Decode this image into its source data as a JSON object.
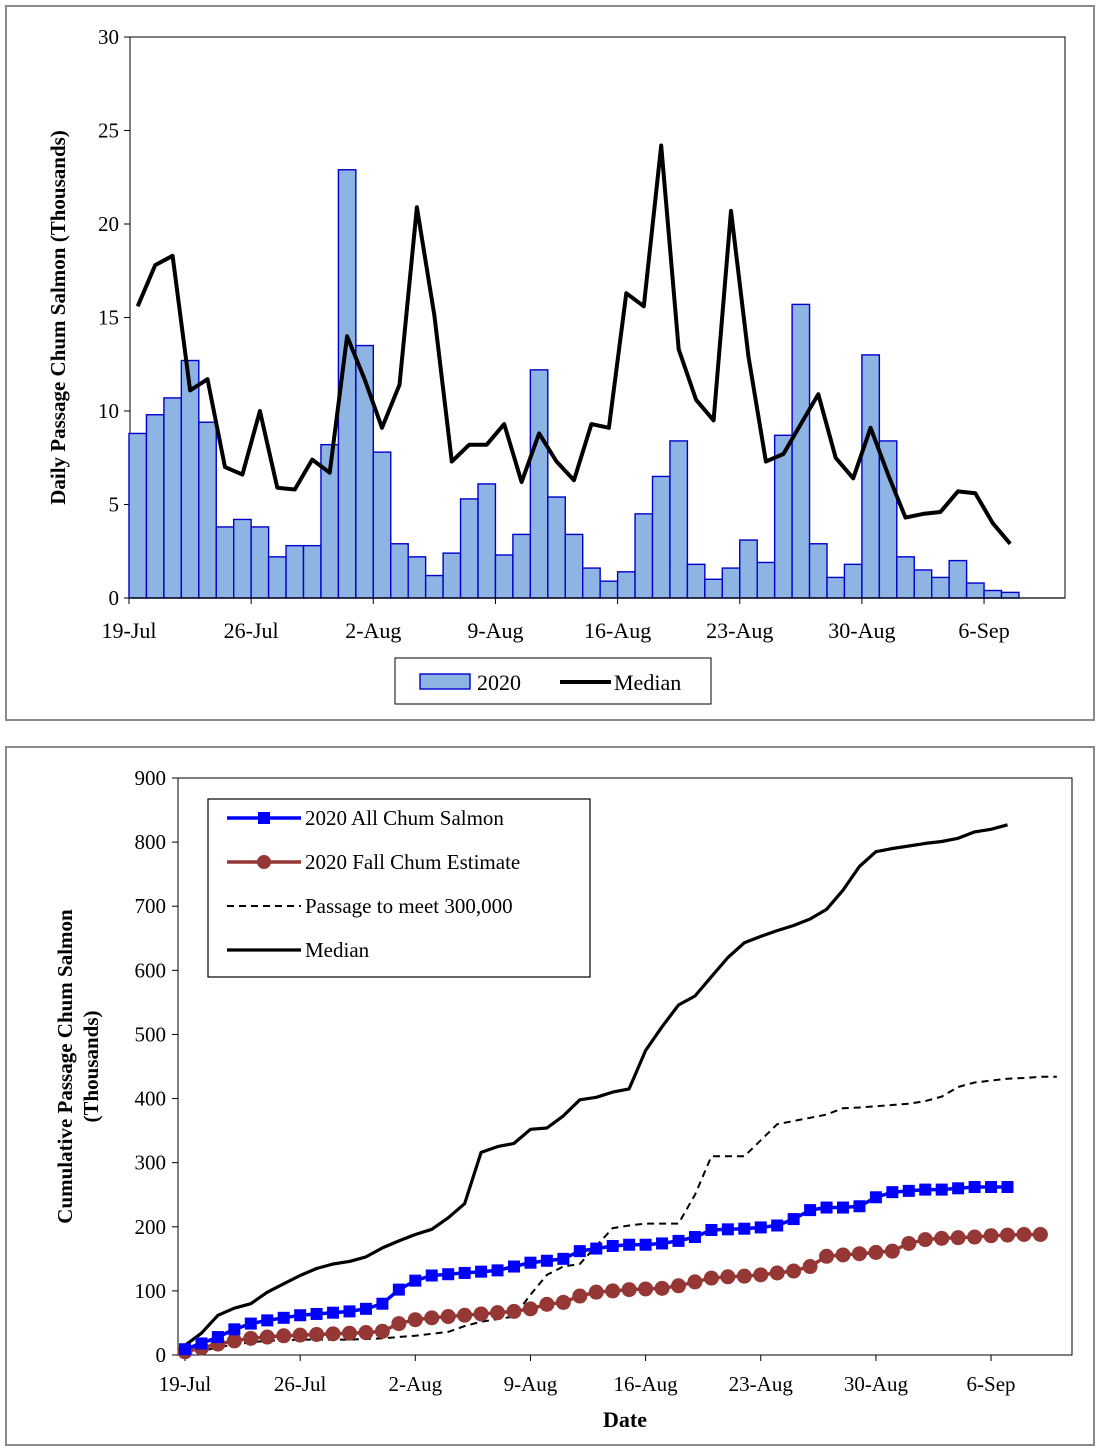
{
  "chart_data": [
    {
      "type": "bar",
      "ylabel": "Daily Passage Chum Salmon (Thousands)",
      "xlabel": "",
      "ylim": [
        0,
        30
      ],
      "yticks": [
        "0",
        "5",
        "10",
        "15",
        "20",
        "25",
        "30"
      ],
      "x_tick_labels": [
        "19-Jul",
        "26-Jul",
        "2-Aug",
        "9-Aug",
        "16-Aug",
        "23-Aug",
        "30-Aug",
        "6-Sep"
      ],
      "x_tick_days": [
        0,
        7,
        14,
        21,
        28,
        35,
        42,
        49
      ],
      "legend_placement": "bottom",
      "series": [
        {
          "name": "2020",
          "kind": "bar",
          "color": "#8EB4E3",
          "edge": "#0000CC",
          "start_date": "19-Jul",
          "values": [
            8.8,
            9.8,
            10.7,
            12.7,
            9.4,
            3.8,
            4.2,
            3.8,
            2.2,
            2.8,
            2.8,
            8.2,
            22.9,
            13.5,
            7.8,
            2.9,
            2.2,
            1.2,
            2.4,
            5.3,
            6.1,
            2.3,
            3.4,
            12.2,
            5.4,
            3.4,
            1.6,
            0.9,
            1.4,
            4.5,
            6.5,
            8.4,
            1.8,
            1.0,
            1.6,
            3.1,
            1.9,
            8.7,
            15.7,
            2.9,
            1.1,
            1.8,
            13.0,
            8.4,
            2.2,
            1.5,
            1.1,
            2.0,
            0.8,
            0.4,
            0.3
          ]
        },
        {
          "name": "Median",
          "kind": "line",
          "color": "#000000",
          "start_date": "19-Jul",
          "values": [
            15.6,
            17.8,
            18.3,
            11.1,
            11.7,
            7.0,
            6.6,
            10.0,
            5.9,
            5.8,
            7.4,
            6.7,
            14.0,
            11.7,
            9.1,
            11.4,
            20.9,
            15.1,
            7.3,
            8.2,
            8.2,
            9.3,
            6.2,
            8.8,
            7.3,
            6.3,
            9.3,
            9.1,
            16.3,
            15.6,
            24.2,
            13.3,
            10.6,
            9.5,
            20.7,
            12.9,
            7.3,
            7.7,
            9.3,
            10.9,
            7.5,
            6.4,
            9.1,
            6.6,
            4.3,
            4.5,
            4.6,
            5.7,
            5.6,
            4.0,
            2.9
          ]
        }
      ]
    },
    {
      "type": "line",
      "xlabel": "Date",
      "ylabel": "Cumulative  Passage Chum Salmon (Thousands)",
      "ylim": [
        0,
        900
      ],
      "yticks": [
        "0",
        "100",
        "200",
        "300",
        "400",
        "500",
        "600",
        "700",
        "800",
        "900"
      ],
      "x_tick_labels": [
        "19-Jul",
        "26-Jul",
        "2-Aug",
        "9-Aug",
        "16-Aug",
        "23-Aug",
        "30-Aug",
        "6-Sep"
      ],
      "x_tick_days": [
        0,
        7,
        14,
        21,
        28,
        35,
        42,
        49
      ],
      "legend_placement": "top-left",
      "series": [
        {
          "name": "2020 All Chum Salmon",
          "color": "#0000FF",
          "marker": "square",
          "start_date": "19-Jul",
          "values": [
            9,
            18,
            28,
            40,
            49,
            54,
            58,
            62,
            64,
            66,
            68,
            72,
            80,
            102,
            116,
            124,
            126,
            128,
            130,
            132,
            138,
            144,
            147,
            150,
            162,
            166,
            170,
            172,
            172,
            174,
            178,
            184,
            195,
            196,
            197,
            199,
            202,
            212,
            226,
            230,
            230,
            232,
            246,
            254,
            256,
            258,
            258,
            260,
            262,
            262,
            262
          ]
        },
        {
          "name": "2020 Fall Chum Estimate",
          "color": "#953735",
          "marker": "circle",
          "start_date": "19-Jul",
          "values": [
            5,
            11,
            17,
            22,
            26,
            28,
            30,
            31,
            32,
            33,
            34,
            35,
            37,
            49,
            55,
            58,
            60,
            62,
            64,
            66,
            68,
            72,
            79,
            82,
            92,
            98,
            100,
            102,
            103,
            104,
            108,
            114,
            120,
            122,
            123,
            125,
            128,
            131,
            138,
            154,
            156,
            158,
            160,
            162,
            174,
            180,
            182,
            183,
            184,
            186,
            187,
            188,
            188
          ]
        },
        {
          "name": "Passage to meet 300,000",
          "color": "#000000",
          "dash": "dashed",
          "start_date": "19-Jul",
          "values": [
            2,
            6,
            12,
            16,
            20,
            22,
            23,
            24,
            24,
            24,
            24,
            25,
            26,
            28,
            30,
            33,
            36,
            45,
            52,
            56,
            60,
            94,
            125,
            138,
            142,
            170,
            198,
            202,
            205,
            205,
            205,
            250,
            310,
            310,
            310,
            335,
            360,
            365,
            370,
            375,
            385,
            386,
            388,
            390,
            392,
            396,
            403,
            418,
            425,
            428,
            431,
            432,
            434,
            434
          ]
        },
        {
          "name": "Median",
          "color": "#000000",
          "dash": "solid",
          "start_date": "19-Jul",
          "values": [
            15,
            34,
            62,
            73,
            80,
            98,
            111,
            124,
            135,
            142,
            146,
            153,
            167,
            178,
            188,
            196,
            214,
            236,
            316,
            325,
            330,
            352,
            354,
            373,
            398,
            402,
            410,
            415,
            475,
            512,
            546,
            560,
            590,
            620,
            643,
            653,
            662,
            670,
            680,
            695,
            725,
            762,
            785,
            790,
            794,
            798,
            801,
            806,
            816,
            820,
            827
          ]
        }
      ]
    }
  ]
}
